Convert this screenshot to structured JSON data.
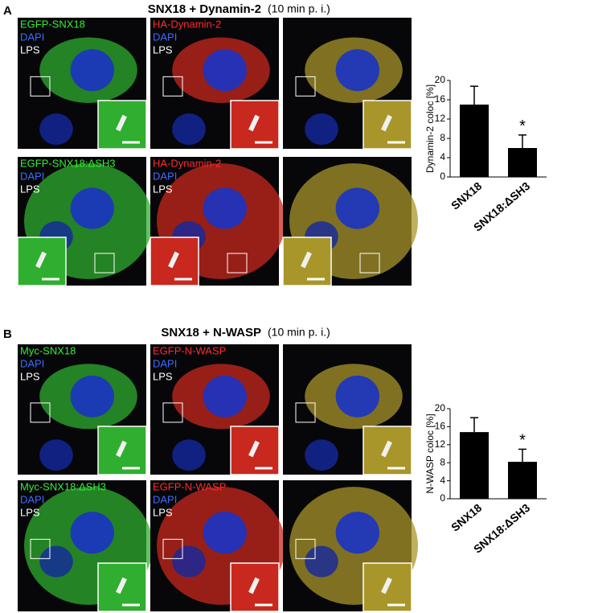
{
  "figures": [
    {
      "label": "A",
      "title": "SNX18 + Dynamin-2",
      "subtitle": "(10 min p. i.)",
      "rows": [
        [
          [
            "EGFP-SNX18",
            "DAPI",
            "LPS"
          ],
          [
            "HA-Dynamin-2",
            "DAPI",
            "LPS"
          ],
          []
        ],
        [
          [
            "EGFP-SNX18:ΔSH3",
            "DAPI",
            "LPS"
          ],
          [
            "HA-Dynamin-2",
            "DAPI",
            "LPS"
          ],
          []
        ]
      ]
    },
    {
      "label": "B",
      "title": "SNX18 + N-WASP",
      "subtitle": "(10 min p. i.)",
      "rows": [
        [
          [
            "Myc-SNX18",
            "DAPI",
            "LPS"
          ],
          [
            "EGFP-N-WASP",
            "DAPI",
            "LPS"
          ],
          []
        ],
        [
          [
            "Myc-SNX18:ΔSH3",
            "DAPI",
            "LPS"
          ],
          [
            "EGFP-N-WASP",
            "DAPI",
            "LPS"
          ],
          []
        ]
      ]
    }
  ],
  "chart_data": [
    {
      "type": "bar",
      "y_label": "Dynamin-2 coloc [%]",
      "categories": [
        "SNX18",
        "SNX18:ΔSH3"
      ],
      "values": [
        15,
        6
      ],
      "errors": [
        3.8,
        2.7
      ],
      "color": "#000000",
      "annotation": "*",
      "ylim": [
        0,
        20
      ],
      "yticks": [
        0,
        4,
        8,
        12,
        16,
        20
      ]
    },
    {
      "type": "bar",
      "y_label": "N-WASP coloc [%]",
      "categories": [
        "SNX18",
        "SNX18:ΔSH3"
      ],
      "values": [
        14.8,
        8.2
      ],
      "errors": [
        3.2,
        2.8
      ],
      "color": "#000000",
      "annotation": "*",
      "ylim": [
        0,
        20
      ],
      "yticks": [
        0,
        4,
        8,
        12,
        16,
        20
      ]
    }
  ]
}
